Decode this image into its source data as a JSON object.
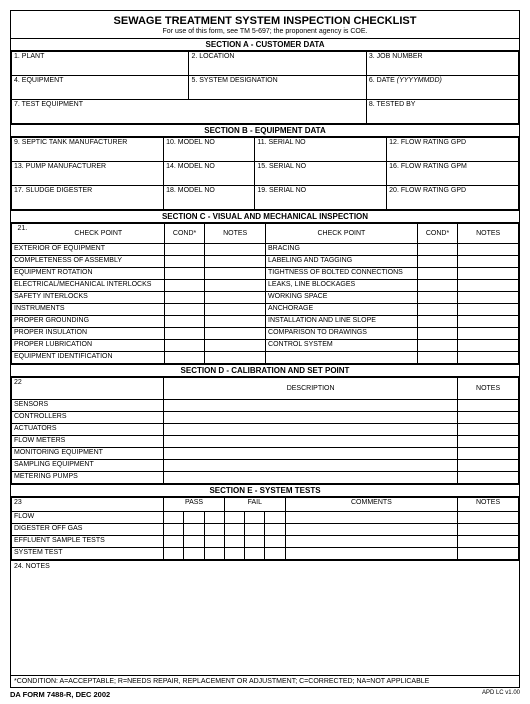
{
  "title": "SEWAGE TREATMENT SYSTEM INSPECTION CHECKLIST",
  "subtitle": "For use of this form, see TM 5-697; the proponent agency is COE.",
  "sections": {
    "A": "SECTION A - CUSTOMER DATA",
    "B": "SECTION B - EQUIPMENT DATA",
    "C": "SECTION C - VISUAL AND MECHANICAL INSPECTION",
    "D": "SECTION D - CALIBRATION AND SET POINT",
    "E": "SECTION E - SYSTEM TESTS"
  },
  "A": {
    "f1": "1.  PLANT",
    "f2": "2.  LOCATION",
    "f3": "3. JOB NUMBER",
    "f4": "4.  EQUIPMENT",
    "f5": "5.  SYSTEM DESIGNATION",
    "f6_a": "6. DATE ",
    "f6_b": "(YYYYMMDD)",
    "f7": "7.  TEST EQUIPMENT",
    "f8": "8. TESTED BY"
  },
  "B": {
    "f9": "9.  SEPTIC TANK MANUFACTURER",
    "f10": "10.  MODEL NO",
    "f11": "11.  SERIAL NO",
    "f12": "12. FLOW RATING GPD",
    "f13": "13.  PUMP MANUFACTURER",
    "f14": "14.  MODEL NO",
    "f15": "15.  SERIAL NO",
    "f16": "16. FLOW RATING GPM",
    "f17": "17.  SLUDGE DIGESTER",
    "f18": "18.  MODEL NO",
    "f19": "19.  SERIAL NO",
    "f20": "20.  FLOW RATING GPD"
  },
  "C": {
    "num": "21.",
    "hdr_checkpoint": "CHECK POINT",
    "hdr_cond": "COND*",
    "hdr_notes": "NOTES",
    "left": [
      "EXTERIOR OF EQUIPMENT",
      "COMPLETENESS OF ASSEMBLY",
      "EQUIPMENT ROTATION",
      "ELECTRICAL/MECHANICAL INTERLOCKS",
      "SAFETY INTERLOCKS",
      "INSTRUMENTS",
      "PROPER GROUNDING",
      "PROPER INSULATION",
      "PROPER LUBRICATION",
      "EQUIPMENT IDENTIFICATION"
    ],
    "right": [
      "BRACING",
      "LABELING AND TAGGING",
      "TIGHTNESS OF BOLTED CONNECTIONS",
      "LEAKS, LINE BLOCKAGES",
      "WORKING SPACE",
      "ANCHORAGE",
      "INSTALLATION AND LINE SLOPE",
      "COMPARISON TO DRAWINGS",
      "CONTROL SYSTEM",
      ""
    ]
  },
  "D": {
    "num": "22",
    "hdr_desc": "DESCRIPTION",
    "hdr_notes": "NOTES",
    "rows": [
      "SENSORS",
      "CONTROLLERS",
      "ACTUATORS",
      "FLOW METERS",
      "MONITORING EQUIPMENT",
      "SAMPLING EQUIPMENT",
      "METERING PUMPS"
    ]
  },
  "E": {
    "num": "23",
    "hdr_pass": "PASS",
    "hdr_fail": "FAIL",
    "hdr_comments": "COMMENTS",
    "hdr_notes": "NOTES",
    "rows": [
      "FLOW",
      "DIGESTER OFF GAS",
      "EFFLUENT SAMPLE TESTS",
      "SYSTEM TEST"
    ]
  },
  "notes_label": "24.  NOTES",
  "condition_note": "*CONDITION: A=ACCEPTABLE; R=NEEDS REPAIR, REPLACEMENT OR ADJUSTMENT; C=CORRECTED; NA=NOT APPLICABLE",
  "footer_left": "DA FORM 7488-R, DEC 2002",
  "footer_right": "APD LC v1.00"
}
